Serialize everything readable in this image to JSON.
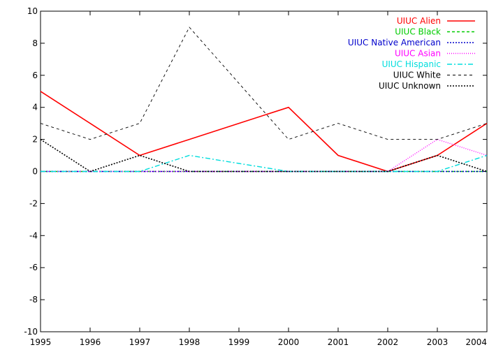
{
  "chart_data": {
    "type": "line",
    "title": "",
    "xlabel": "",
    "ylabel": "",
    "xlim": [
      1995,
      2004
    ],
    "ylim": [
      -10,
      10
    ],
    "grid": false,
    "legend_position": "top-right",
    "x": [
      1995,
      1996,
      1997,
      1998,
      1999,
      2000,
      2001,
      2002,
      2003,
      2004
    ],
    "x_tick_labels": [
      "1995",
      "1996",
      "1997",
      "1998",
      "1999",
      "2000",
      "2001",
      "2002",
      "2003",
      "2004"
    ],
    "y_ticks": [
      -10,
      -8,
      -6,
      -4,
      -2,
      0,
      2,
      4,
      6,
      8,
      10
    ],
    "y_tick_labels": [
      "-10",
      "-8",
      "-6",
      "-4",
      "-2",
      "0",
      "2",
      "4",
      "6",
      "8",
      "10"
    ],
    "series": [
      {
        "name": "UIUC Alien",
        "color": "#ff0000",
        "dash": "",
        "width": 1.6,
        "values": [
          5,
          3,
          1,
          2,
          3,
          4,
          1,
          0,
          1,
          3
        ]
      },
      {
        "name": "UIUC Black",
        "color": "#00cc00",
        "dash": "4,3",
        "width": 1.4,
        "values": [
          0,
          0,
          0,
          0,
          0,
          0,
          0,
          0,
          0,
          0
        ]
      },
      {
        "name": "UIUC Native American",
        "color": "#0000cc",
        "dash": "2,2",
        "width": 1.4,
        "values": [
          0,
          0,
          0,
          0,
          0,
          0,
          0,
          0,
          0,
          0
        ]
      },
      {
        "name": "UIUC Asian",
        "color": "#ff00ff",
        "dash": "1,2",
        "width": 1.4,
        "values": [
          0,
          0,
          0,
          0,
          0,
          0,
          0,
          0,
          2,
          1
        ]
      },
      {
        "name": "UIUC Hispanic",
        "color": "#00dddd",
        "dash": "7,3,2,3",
        "width": 1.4,
        "values": [
          0,
          0,
          0,
          1,
          0.5,
          0,
          0,
          0,
          0,
          1
        ]
      },
      {
        "name": "UIUC White",
        "color": "#000000",
        "dash": "4,4",
        "width": 0.9,
        "values": [
          3,
          2,
          3,
          9,
          5.5,
          2,
          3,
          2,
          2,
          3
        ]
      },
      {
        "name": "UIUC Unknown",
        "color": "#000000",
        "dash": "2,2",
        "width": 1.6,
        "values": [
          2,
          0,
          1,
          0,
          0,
          0,
          0,
          0,
          1,
          0
        ]
      }
    ]
  }
}
